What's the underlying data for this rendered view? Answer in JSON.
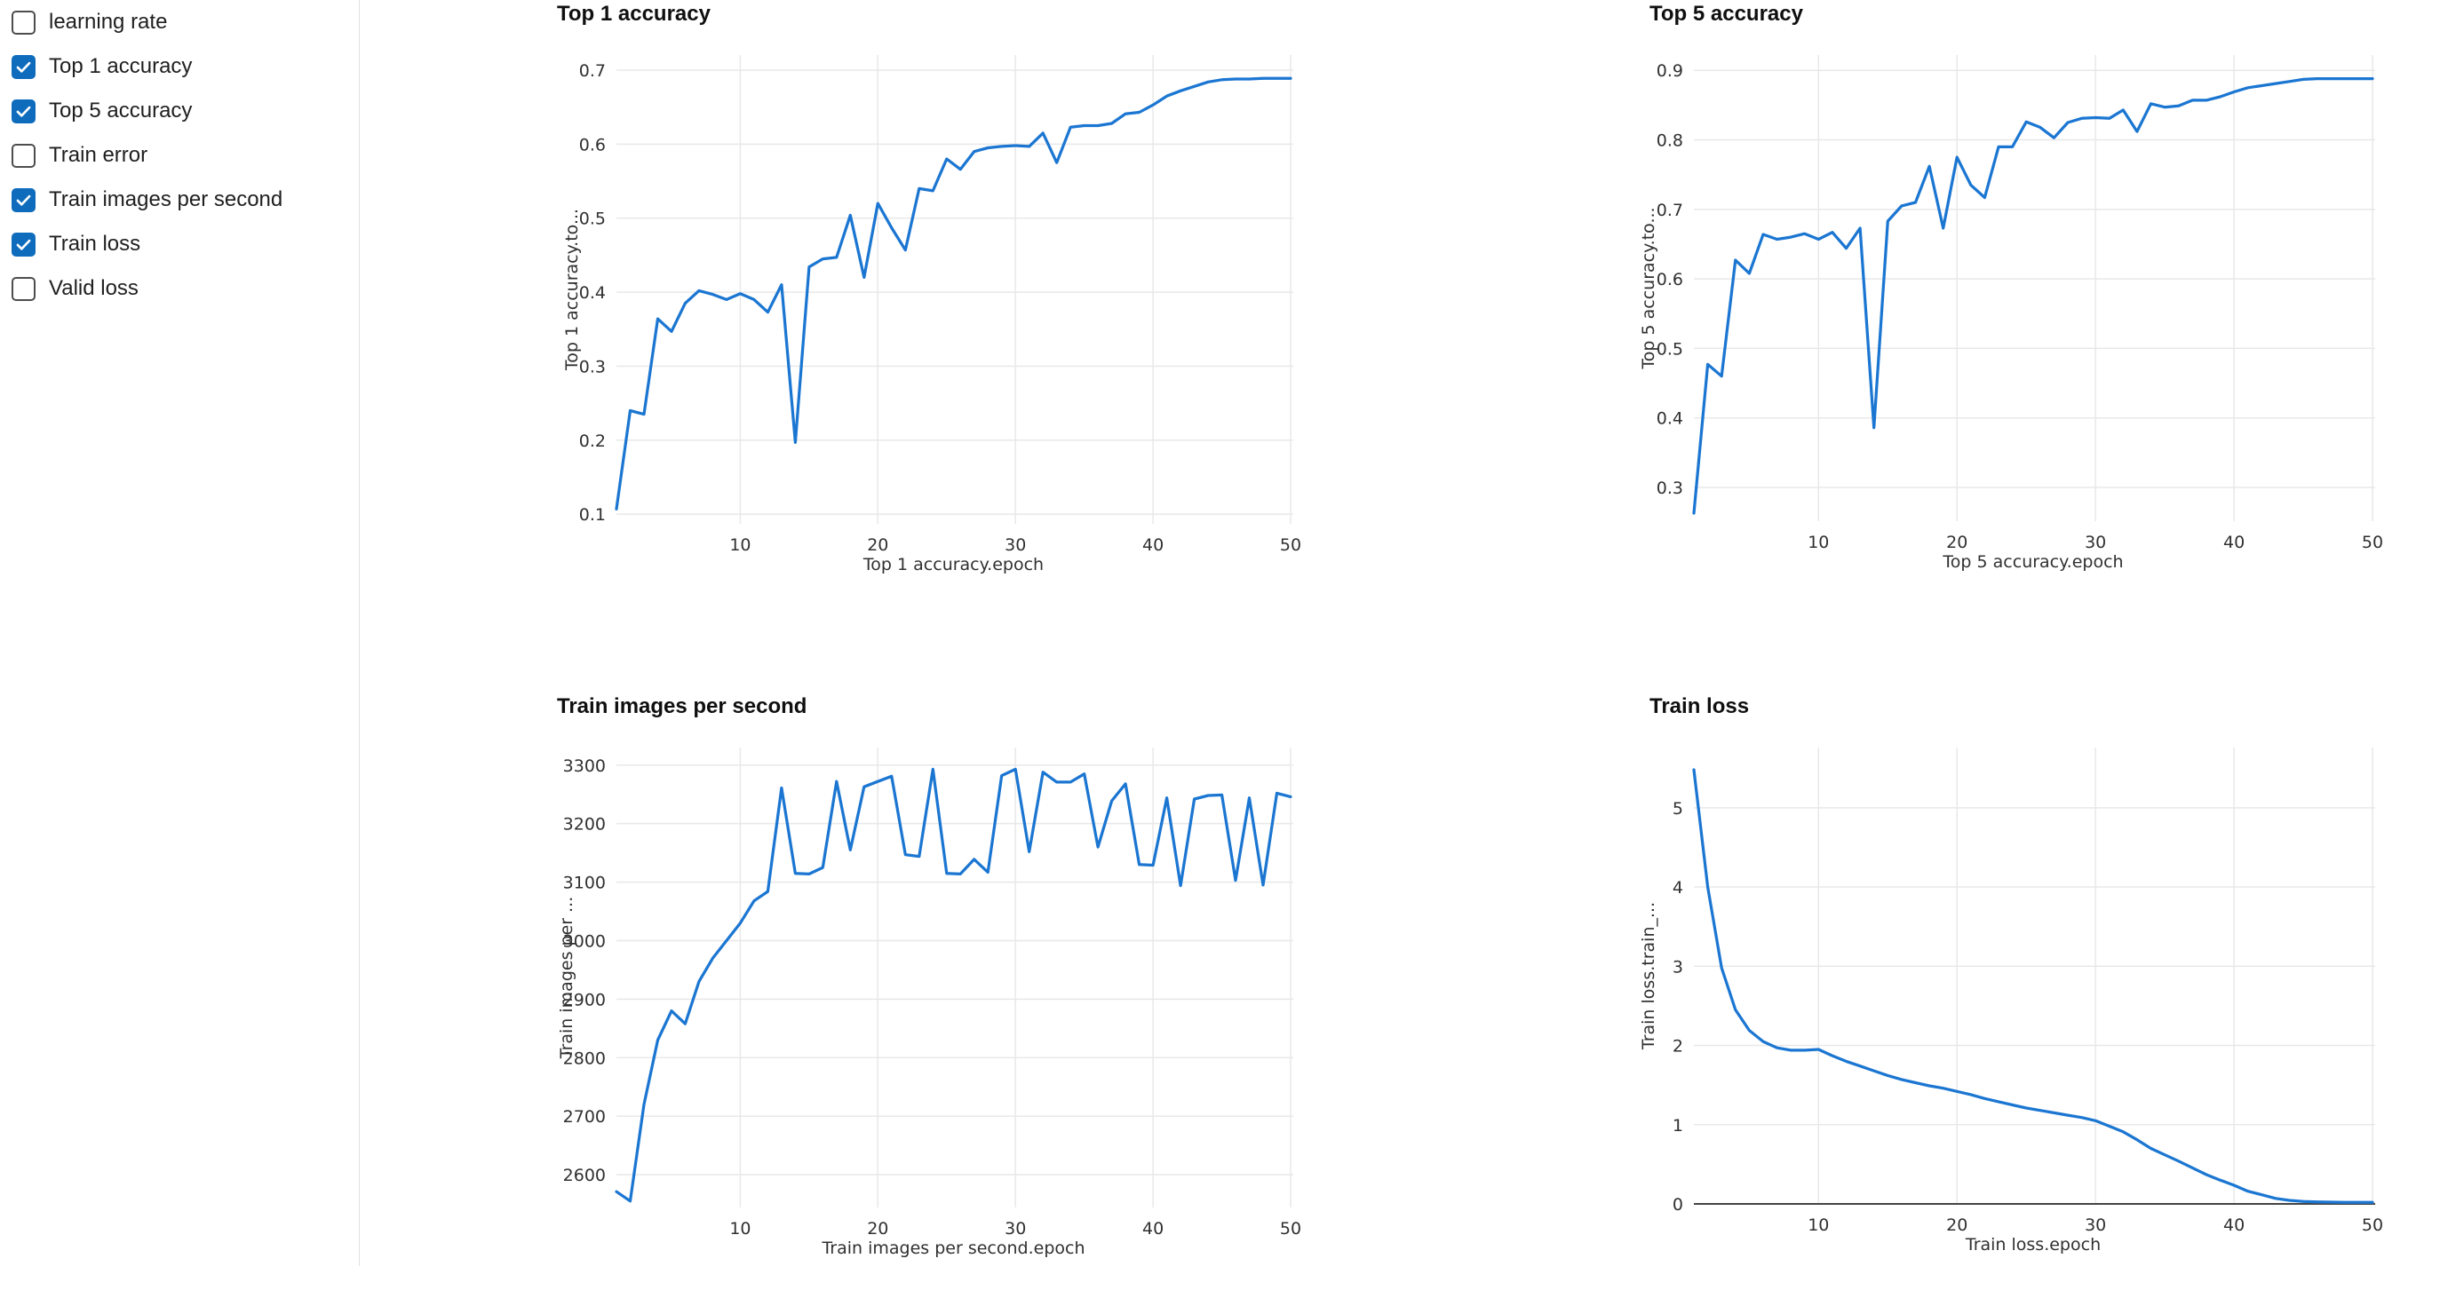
{
  "sidebar": {
    "items": [
      {
        "label": "learning rate",
        "checked": false
      },
      {
        "label": "Top 1 accuracy",
        "checked": true
      },
      {
        "label": "Top 5 accuracy",
        "checked": true
      },
      {
        "label": "Train error",
        "checked": false
      },
      {
        "label": "Train images per second",
        "checked": true
      },
      {
        "label": "Train loss",
        "checked": true
      },
      {
        "label": "Valid loss",
        "checked": false
      }
    ]
  },
  "colors": {
    "line": "#1b76d2",
    "checkbox": "#0f6cbd",
    "grid": "#e8e8e8",
    "zero_line": "#444444",
    "axis_text": "#303030",
    "divider": "#e0e0e0"
  },
  "chart_data": [
    {
      "type": "line",
      "title": "Top 1 accuracy",
      "xlabel": "Top 1 accuracy.epoch",
      "ylabel": "Top 1 accuracy.to...",
      "xlim": [
        1,
        50
      ],
      "ylim": [
        0.087,
        0.7204
      ],
      "xticks": [
        10,
        20,
        30,
        40,
        50
      ],
      "ytick_values": [
        0.1,
        0.2,
        0.3,
        0.4,
        0.5,
        0.6,
        0.7
      ],
      "ytick_labels": [
        "0.1",
        "0.2",
        "0.3",
        "0.4",
        "0.5",
        "0.6",
        "0.7"
      ],
      "grid": true,
      "zeroline": false,
      "x": [
        1,
        2,
        3,
        4,
        5,
        6,
        7,
        8,
        9,
        10,
        11,
        12,
        13,
        14,
        15,
        16,
        17,
        18,
        19,
        20,
        21,
        22,
        23,
        24,
        25,
        26,
        27,
        28,
        29,
        30,
        31,
        32,
        33,
        34,
        35,
        36,
        37,
        38,
        39,
        40,
        41,
        42,
        43,
        44,
        45,
        46,
        47,
        48,
        49,
        50
      ],
      "values": [
        0.107,
        0.24,
        0.235,
        0.364,
        0.347,
        0.385,
        0.402,
        0.397,
        0.39,
        0.398,
        0.39,
        0.373,
        0.41,
        0.197,
        0.434,
        0.445,
        0.447,
        0.504,
        0.42,
        0.52,
        0.487,
        0.457,
        0.54,
        0.537,
        0.58,
        0.566,
        0.59,
        0.595,
        0.597,
        0.598,
        0.597,
        0.615,
        0.575,
        0.623,
        0.625,
        0.625,
        0.628,
        0.641,
        0.643,
        0.653,
        0.665,
        0.672,
        0.678,
        0.684,
        0.687,
        0.688,
        0.688,
        0.689,
        0.689,
        0.689
      ]
    },
    {
      "type": "line",
      "title": "Top 5 accuracy",
      "xlabel": "Top 5 accuracy.epoch",
      "ylabel": "Top 5 accuracy.to...",
      "xlim": [
        1,
        50
      ],
      "ylim": [
        0.2515,
        0.922
      ],
      "xticks": [
        10,
        20,
        30,
        40,
        50
      ],
      "ytick_values": [
        0.3,
        0.4,
        0.5,
        0.6,
        0.7,
        0.8,
        0.9
      ],
      "ytick_labels": [
        "0.3",
        "0.4",
        "0.5",
        "0.6",
        "0.7",
        "0.8",
        "0.9"
      ],
      "grid": true,
      "zeroline": false,
      "x": [
        1,
        2,
        3,
        4,
        5,
        6,
        7,
        8,
        9,
        10,
        11,
        12,
        13,
        14,
        15,
        16,
        17,
        18,
        19,
        20,
        21,
        22,
        23,
        24,
        25,
        26,
        27,
        28,
        29,
        30,
        31,
        32,
        33,
        34,
        35,
        36,
        37,
        38,
        39,
        40,
        41,
        42,
        43,
        44,
        45,
        46,
        47,
        48,
        49,
        50
      ],
      "values": [
        0.263,
        0.477,
        0.46,
        0.627,
        0.608,
        0.664,
        0.657,
        0.66,
        0.665,
        0.657,
        0.667,
        0.644,
        0.673,
        0.386,
        0.683,
        0.705,
        0.71,
        0.762,
        0.673,
        0.775,
        0.735,
        0.717,
        0.79,
        0.79,
        0.826,
        0.818,
        0.803,
        0.825,
        0.831,
        0.832,
        0.831,
        0.843,
        0.812,
        0.852,
        0.847,
        0.849,
        0.857,
        0.857,
        0.862,
        0.869,
        0.875,
        0.878,
        0.881,
        0.884,
        0.887,
        0.888,
        0.888,
        0.888,
        0.888,
        0.888
      ]
    },
    {
      "type": "line",
      "title": "Train images per second",
      "xlabel": "Train images per second.epoch",
      "ylabel": "Train images per ...",
      "xlim": [
        1,
        50
      ],
      "ylim": [
        2544,
        3330
      ],
      "xticks": [
        10,
        20,
        30,
        40,
        50
      ],
      "ytick_values": [
        2600,
        2700,
        2800,
        2900,
        3000,
        3100,
        3200,
        3300
      ],
      "ytick_labels": [
        "2600",
        "2700",
        "2800",
        "2900",
        "3000",
        "3100",
        "3200",
        "3300"
      ],
      "grid": true,
      "zeroline": false,
      "x": [
        1,
        2,
        3,
        4,
        5,
        6,
        7,
        8,
        9,
        10,
        11,
        12,
        13,
        14,
        15,
        16,
        17,
        18,
        19,
        20,
        21,
        22,
        23,
        24,
        25,
        26,
        27,
        28,
        29,
        30,
        31,
        32,
        33,
        34,
        35,
        36,
        37,
        38,
        39,
        40,
        41,
        42,
        43,
        44,
        45,
        46,
        47,
        48,
        49,
        50
      ],
      "values": [
        2571,
        2555,
        2720,
        2830,
        2880,
        2858,
        2930,
        2970,
        3000,
        3030,
        3068,
        3084,
        3261,
        3115,
        3114,
        3125,
        3272,
        3155,
        3263,
        3272,
        3281,
        3147,
        3144,
        3293,
        3115,
        3114,
        3139,
        3117,
        3282,
        3293,
        3152,
        3288,
        3271,
        3271,
        3285,
        3160,
        3239,
        3268,
        3130,
        3129,
        3244,
        3094,
        3242,
        3248,
        3249,
        3103,
        3244,
        3095,
        3252,
        3246
      ]
    },
    {
      "type": "line",
      "title": "Train loss",
      "xlabel": "Train loss.epoch",
      "ylabel": "Train loss.train_...",
      "xlim": [
        1,
        50
      ],
      "ylim": [
        0,
        5.76
      ],
      "xticks": [
        10,
        20,
        30,
        40,
        50
      ],
      "ytick_values": [
        0,
        1,
        2,
        3,
        4,
        5
      ],
      "ytick_labels": [
        "0",
        "1",
        "2",
        "3",
        "4",
        "5"
      ],
      "grid": true,
      "zeroline": true,
      "x": [
        1,
        2,
        3,
        4,
        5,
        6,
        7,
        8,
        9,
        10,
        11,
        12,
        13,
        14,
        15,
        16,
        17,
        18,
        19,
        20,
        21,
        22,
        23,
        24,
        25,
        26,
        27,
        28,
        29,
        30,
        31,
        32,
        33,
        34,
        35,
        36,
        37,
        38,
        39,
        40,
        41,
        42,
        43,
        44,
        45,
        46,
        47,
        48,
        49,
        50
      ],
      "values": [
        5.48,
        4.0,
        2.98,
        2.45,
        2.19,
        2.05,
        1.97,
        1.94,
        1.94,
        1.95,
        1.87,
        1.8,
        1.74,
        1.68,
        1.62,
        1.57,
        1.53,
        1.49,
        1.46,
        1.42,
        1.38,
        1.33,
        1.29,
        1.25,
        1.21,
        1.18,
        1.15,
        1.12,
        1.09,
        1.05,
        0.98,
        0.91,
        0.81,
        0.7,
        0.62,
        0.54,
        0.455,
        0.37,
        0.3,
        0.235,
        0.16,
        0.115,
        0.07,
        0.045,
        0.03,
        0.025,
        0.022,
        0.02,
        0.02,
        0.02
      ]
    }
  ]
}
